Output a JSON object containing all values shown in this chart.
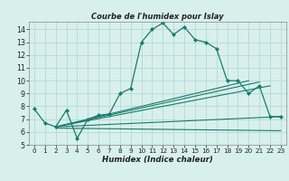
{
  "title": "Courbe de l'humidex pour Islay",
  "xlabel": "Humidex (Indice chaleur)",
  "bg_color": "#d8f0ec",
  "grid_color": "#b8ddd8",
  "line_color": "#1a7a6e",
  "xlim": [
    -0.5,
    23.5
  ],
  "ylim": [
    5,
    14.6
  ],
  "xticks": [
    0,
    1,
    2,
    3,
    4,
    5,
    6,
    7,
    8,
    9,
    10,
    11,
    12,
    13,
    14,
    15,
    16,
    17,
    18,
    19,
    20,
    21,
    22,
    23
  ],
  "yticks": [
    5,
    6,
    7,
    8,
    9,
    10,
    11,
    12,
    13,
    14
  ],
  "main_x": [
    0,
    1,
    2,
    3,
    4,
    5,
    6,
    7,
    8,
    9,
    10,
    11,
    12,
    13,
    14,
    15,
    16,
    17,
    18,
    19,
    20,
    21,
    22,
    23
  ],
  "main_y": [
    7.8,
    6.7,
    6.4,
    7.7,
    5.5,
    7.0,
    7.3,
    7.4,
    9.0,
    9.4,
    13.0,
    14.0,
    14.5,
    13.6,
    14.2,
    13.2,
    13.0,
    12.5,
    10.0,
    10.0,
    9.0,
    9.6,
    7.2,
    7.2
  ],
  "straight_lines": [
    {
      "x": [
        2,
        20
      ],
      "y": [
        6.4,
        10.0
      ]
    },
    {
      "x": [
        2,
        21
      ],
      "y": [
        6.4,
        9.9
      ]
    },
    {
      "x": [
        2,
        22
      ],
      "y": [
        6.4,
        9.6
      ]
    },
    {
      "x": [
        2,
        23
      ],
      "y": [
        6.4,
        7.2
      ]
    },
    {
      "x": [
        2,
        23
      ],
      "y": [
        6.3,
        6.1
      ]
    }
  ]
}
